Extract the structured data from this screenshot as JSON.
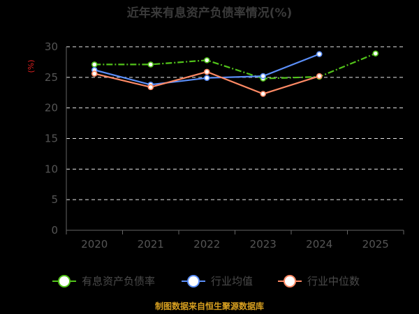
{
  "chart_data": {
    "type": "line",
    "title": "近年来有息资产负债率情况(%)",
    "ylabel": "(%)",
    "categories": [
      "2020",
      "2021",
      "2022",
      "2023",
      "2024",
      "2025"
    ],
    "ylim": [
      0,
      30
    ],
    "yticks": [
      0,
      5,
      10,
      15,
      20,
      25,
      30
    ],
    "grid": true,
    "legend_position": "bottom",
    "series": [
      {
        "name": "有息资产负债率",
        "color": "#52c41a",
        "dashed": true,
        "values": [
          27.1,
          27.1,
          27.8,
          24.8,
          25.1,
          28.9
        ]
      },
      {
        "name": "行业均值",
        "color": "#5b8ff9",
        "dashed": false,
        "values": [
          26.2,
          23.8,
          24.9,
          25.2,
          28.8,
          null
        ]
      },
      {
        "name": "行业中位数",
        "color": "#ff8a65",
        "dashed": false,
        "values": [
          25.6,
          23.4,
          25.9,
          22.3,
          25.2,
          null
        ]
      }
    ],
    "source": "制图数据来自恒生聚源数据库"
  }
}
